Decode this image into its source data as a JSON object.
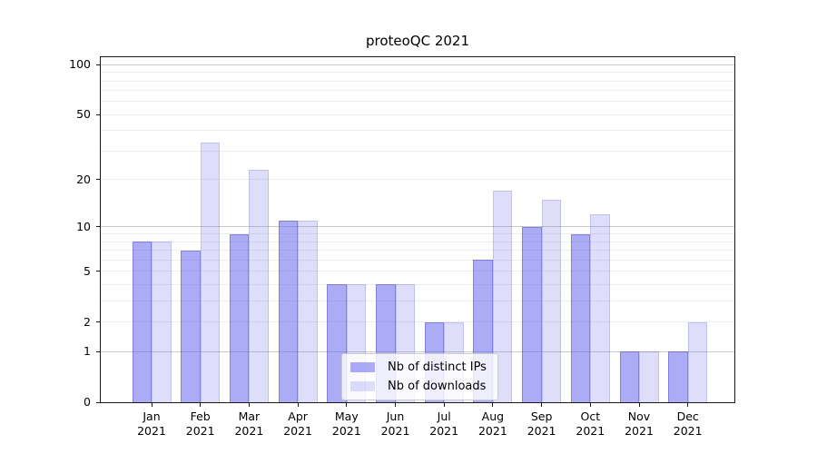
{
  "chart_data": {
    "type": "bar",
    "title": "proteoQC 2021",
    "categories": [
      "Jan 2021",
      "Feb 2021",
      "Mar 2021",
      "Apr 2021",
      "May 2021",
      "Jun 2021",
      "Jul 2021",
      "Aug 2021",
      "Sep 2021",
      "Oct 2021",
      "Nov 2021",
      "Dec 2021"
    ],
    "series": [
      {
        "name": "Nb of distinct IPs",
        "values": [
          8,
          7,
          9,
          11,
          4,
          4,
          2,
          6,
          10,
          9,
          1,
          1
        ],
        "fill": "rgba(104,104,238,0.55)",
        "edge": "rgba(80,80,190,0.45)"
      },
      {
        "name": "Nb of downloads",
        "values": [
          8,
          34,
          23,
          11,
          4,
          4,
          2,
          17,
          15,
          12,
          1,
          2
        ],
        "fill": "rgba(104,104,238,0.22)",
        "edge": "rgba(80,80,190,0.20)"
      }
    ],
    "yscale": "log1p",
    "ylim": [
      0,
      111
    ],
    "yticks": [
      0,
      1,
      2,
      5,
      10,
      20,
      50,
      100
    ],
    "major_gridlines": [
      1,
      10,
      100
    ],
    "minor_gridlines": [
      2,
      3,
      4,
      5,
      6,
      7,
      8,
      9,
      20,
      30,
      40,
      50,
      60,
      70,
      80,
      90
    ],
    "grid": true,
    "legend_position": "lower center-right inside plot",
    "colors": {
      "major_grid": "#c9c9c9",
      "minor_grid": "#ededed",
      "spine": "#1a1a1a",
      "text": "#000000",
      "legend_border": "#cccccc"
    }
  }
}
